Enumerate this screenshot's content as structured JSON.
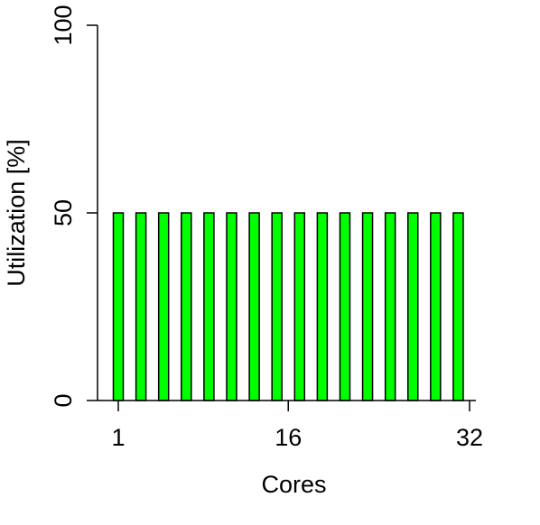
{
  "chart_data": {
    "type": "bar",
    "xlabel": "Cores",
    "ylabel": "Utilization [%]",
    "ylim": [
      0,
      100
    ],
    "xlim": [
      1,
      32
    ],
    "x_ticks": [
      "1",
      "16",
      "32"
    ],
    "y_ticks": [
      "0",
      "50",
      "100"
    ],
    "x": [
      1,
      3,
      5,
      7,
      9,
      11,
      13,
      15,
      17,
      19,
      21,
      23,
      25,
      27,
      29,
      31
    ],
    "values": [
      50,
      50,
      50,
      50,
      50,
      50,
      50,
      50,
      50,
      50,
      50,
      50,
      50,
      50,
      50,
      50
    ],
    "bar_color": "#00ff00",
    "bar_border_color": "#000000",
    "grid": false,
    "legend": "none"
  }
}
